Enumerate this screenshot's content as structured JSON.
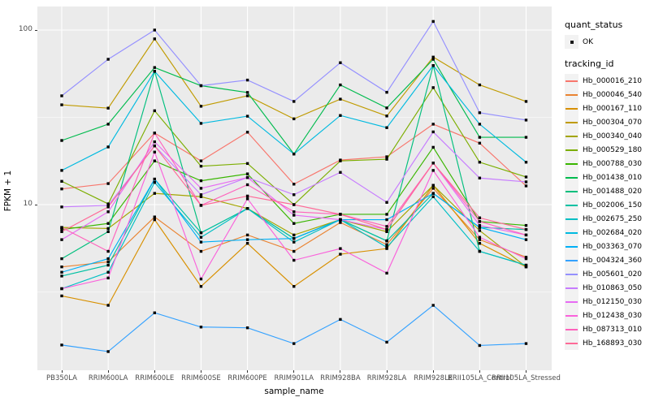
{
  "figure": {
    "y_axis": {
      "title": "FPKM + 1",
      "ticks": [
        {
          "label": "100",
          "value": 100
        },
        {
          "label": "10",
          "value": 10
        }
      ]
    },
    "x_axis": {
      "title": "sample_name"
    },
    "legend": {
      "quant_status_title": "quant_status",
      "quant_status_items": [
        {
          "label": "OK",
          "glyph": "black-square-point"
        }
      ],
      "tracking_title": "tracking_id"
    },
    "panel_background": "#ebebeb",
    "gridline_color": "#ffffff",
    "point_color": "#000000"
  },
  "chart_data": {
    "type": "line",
    "title": "",
    "xlabel": "sample_name",
    "ylabel": "FPKM + 1",
    "y_scale": "log10",
    "ylim": [
      1.12,
      136
    ],
    "major_gridlines_y": [
      10,
      100
    ],
    "minor_gridlines_y": [
      3.162,
      31.62
    ],
    "grid": true,
    "legend_position": "right",
    "point_shape": "filled-square-black",
    "categories": [
      "PB350LA",
      "RRIM600LA",
      "RRIM600LE",
      "RRIM600SE",
      "RRIM600PE",
      "RRIM901LA",
      "RRIM928BA",
      "RRIM928LA",
      "RRIM928LE",
      "RRII105LA_Control",
      "RRII105LA_Stressed"
    ],
    "series": [
      {
        "name": "Hb_000016_210",
        "color": "#F8766D",
        "values": [
          12.3,
          13.2,
          25.7,
          17.8,
          26.0,
          13.1,
          18.0,
          18.8,
          28.9,
          22.5,
          12.8
        ]
      },
      {
        "name": "Hb_000046_540",
        "color": "#EA8331",
        "values": [
          4.4,
          4.7,
          8.5,
          5.4,
          6.7,
          5.4,
          7.9,
          5.9,
          12.4,
          6.3,
          5.0
        ]
      },
      {
        "name": "Hb_000167_110",
        "color": "#D89000",
        "values": [
          3.0,
          2.65,
          8.2,
          3.4,
          6.0,
          3.4,
          5.2,
          5.6,
          12.9,
          6.0,
          4.4
        ]
      },
      {
        "name": "Hb_000304_070",
        "color": "#C09B00",
        "values": [
          37.3,
          35.7,
          89.0,
          36.6,
          42.0,
          31.0,
          40.2,
          32.2,
          70.0,
          48.5,
          39.0
        ]
      },
      {
        "name": "Hb_000340_040",
        "color": "#A3A500",
        "values": [
          7.4,
          7.3,
          11.6,
          11.1,
          9.5,
          6.7,
          8.2,
          7.0,
          12.9,
          7.1,
          4.4
        ]
      },
      {
        "name": "Hb_000529_180",
        "color": "#7CAE00",
        "values": [
          13.6,
          10.1,
          34.5,
          16.6,
          17.2,
          10.0,
          17.8,
          18.2,
          46.8,
          17.5,
          14.4
        ]
      },
      {
        "name": "Hb_000788_030",
        "color": "#39B600",
        "values": [
          7.2,
          7.8,
          17.8,
          13.7,
          15.0,
          7.8,
          8.8,
          8.8,
          21.3,
          8.0,
          7.6
        ]
      },
      {
        "name": "Hb_001438_010",
        "color": "#00BB4E",
        "values": [
          23.3,
          28.9,
          61.0,
          48.0,
          43.9,
          19.5,
          48.5,
          35.8,
          68.0,
          24.3,
          24.3
        ]
      },
      {
        "name": "Hb_001488_020",
        "color": "#00BF7D",
        "values": [
          4.9,
          7.0,
          58.0,
          6.9,
          9.5,
          6.4,
          8.2,
          6.2,
          62.6,
          5.4,
          4.5
        ]
      },
      {
        "name": "Hb_002006_150",
        "color": "#00C1A3",
        "values": [
          3.9,
          4.5,
          14.0,
          6.9,
          9.5,
          6.4,
          8.2,
          6.2,
          11.6,
          7.4,
          7.2
        ]
      },
      {
        "name": "Hb_002675_250",
        "color": "#00BFC4",
        "values": [
          3.3,
          4.1,
          13.4,
          6.5,
          9.5,
          6.1,
          8.2,
          5.7,
          11.1,
          5.4,
          4.5
        ]
      },
      {
        "name": "Hb_002684_020",
        "color": "#00BAE0",
        "values": [
          15.7,
          21.4,
          58.0,
          29.2,
          32.1,
          19.5,
          32.4,
          27.6,
          62.6,
          28.9,
          17.5
        ]
      },
      {
        "name": "Hb_003363_070",
        "color": "#00B0F6",
        "values": [
          4.1,
          4.9,
          14.0,
          6.1,
          6.3,
          6.4,
          8.2,
          8.2,
          11.6,
          7.4,
          6.3
        ]
      },
      {
        "name": "Hb_004324_360",
        "color": "#35A2FF",
        "values": [
          1.57,
          1.44,
          2.4,
          1.99,
          1.97,
          1.6,
          2.2,
          1.63,
          2.65,
          1.56,
          1.6
        ]
      },
      {
        "name": "Hb_005601_020",
        "color": "#9590FF",
        "values": [
          42.0,
          68.0,
          100.0,
          48.0,
          51.7,
          39.0,
          65.0,
          44.0,
          112.0,
          33.6,
          30.5
        ]
      },
      {
        "name": "Hb_010863_050",
        "color": "#C77CFF",
        "values": [
          9.7,
          9.9,
          21.7,
          11.4,
          14.3,
          11.4,
          15.3,
          10.3,
          26.1,
          14.2,
          13.5
        ]
      },
      {
        "name": "Hb_012150_030",
        "color": "#E76BF3",
        "values": [
          6.3,
          9.1,
          22.9,
          12.4,
          14.3,
          8.7,
          8.2,
          7.2,
          17.3,
          7.6,
          6.7
        ]
      },
      {
        "name": "Hb_012438_030",
        "color": "#FA62DB",
        "values": [
          3.3,
          3.8,
          20.0,
          3.75,
          10.8,
          4.8,
          5.6,
          4.05,
          15.7,
          6.5,
          4.9
        ]
      },
      {
        "name": "Hb_087313_010",
        "color": "#FF62BC",
        "values": [
          7.4,
          5.4,
          25.7,
          9.9,
          13.0,
          9.1,
          8.8,
          7.5,
          17.3,
          8.0,
          6.7
        ]
      },
      {
        "name": "Hb_168893_030",
        "color": "#FF6A98",
        "values": [
          7.0,
          9.7,
          21.7,
          9.9,
          11.2,
          10.0,
          8.8,
          7.2,
          17.3,
          8.4,
          7.2
        ]
      }
    ]
  }
}
